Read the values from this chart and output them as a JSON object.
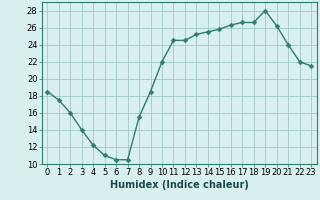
{
  "x": [
    0,
    1,
    2,
    3,
    4,
    5,
    6,
    7,
    8,
    9,
    10,
    11,
    12,
    13,
    14,
    15,
    16,
    17,
    18,
    19,
    20,
    21,
    22,
    23
  ],
  "y": [
    18.5,
    17.5,
    16.0,
    14.0,
    12.2,
    11.0,
    10.5,
    10.5,
    15.5,
    18.5,
    22.0,
    24.5,
    24.5,
    25.2,
    25.5,
    25.8,
    26.3,
    26.6,
    26.6,
    28.0,
    26.2,
    24.0,
    22.0,
    21.5
  ],
  "line_color": "#2e7d6e",
  "marker": "D",
  "marker_size": 2.5,
  "bg_color": "#d9f0f0",
  "grid_color": "#a0c8c8",
  "xlabel": "Humidex (Indice chaleur)",
  "ylim": [
    10,
    29
  ],
  "xlim": [
    -0.5,
    23.5
  ],
  "yticks": [
    10,
    12,
    14,
    16,
    18,
    20,
    22,
    24,
    26,
    28
  ],
  "xticks": [
    0,
    1,
    2,
    3,
    4,
    5,
    6,
    7,
    8,
    9,
    10,
    11,
    12,
    13,
    14,
    15,
    16,
    17,
    18,
    19,
    20,
    21,
    22,
    23
  ],
  "xlabel_fontsize": 7,
  "tick_fontsize": 6,
  "line_width": 1.0,
  "spine_color": "#2e7d6e",
  "tick_color": "#2e7d6e",
  "xlabel_color": "#1a4a4a"
}
